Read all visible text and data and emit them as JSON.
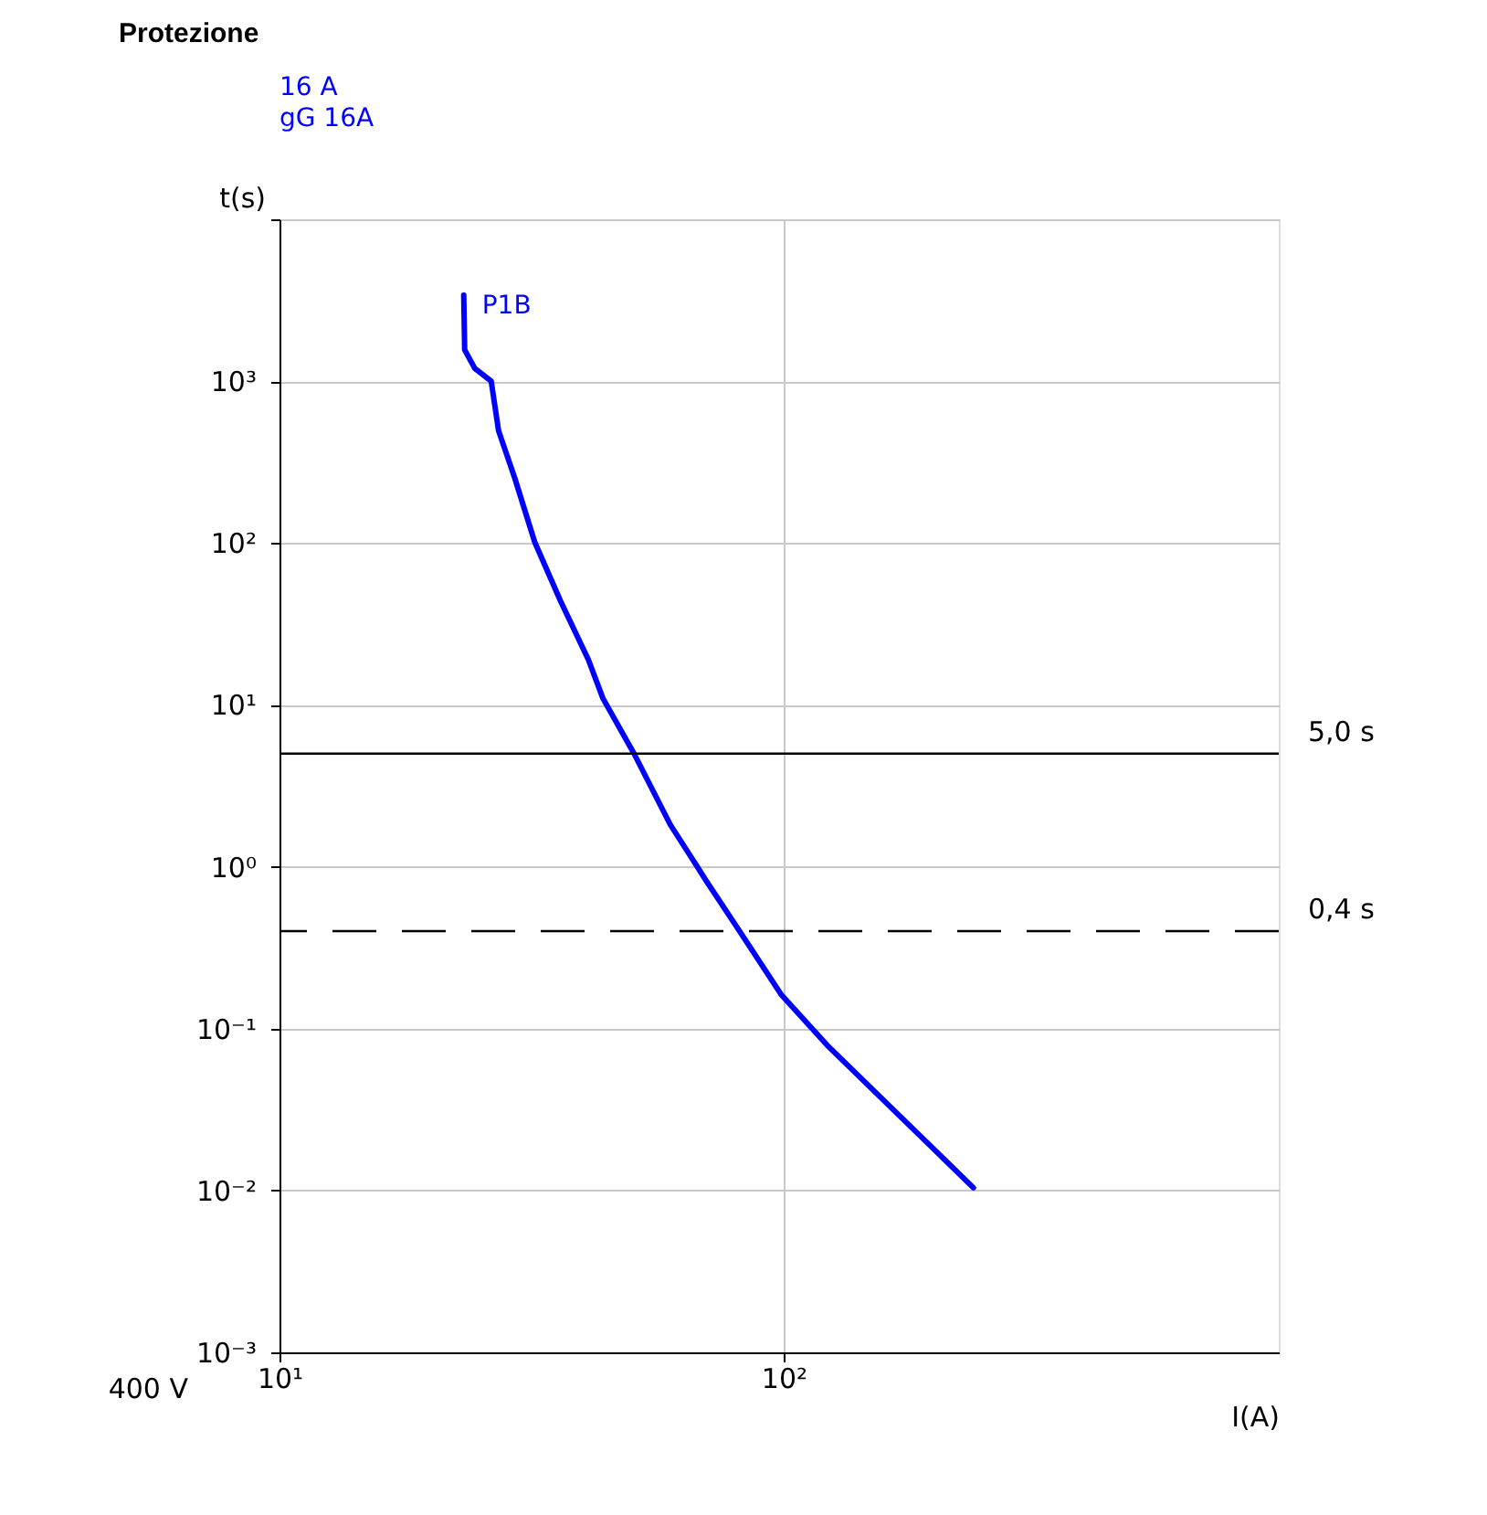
{
  "chart_data": {
    "type": "line",
    "title": "Protezione",
    "subtitle": [
      "16 A",
      "gG 16A"
    ],
    "xlabel": "I(A)",
    "ylabel": "t(s)",
    "log": "xy",
    "grid": true,
    "legend": false,
    "line_style": "solid",
    "marker": "none",
    "xlim": [
      10,
      960
    ],
    "xticks": [
      {
        "value": 10,
        "label": "10¹"
      },
      {
        "value": 100,
        "label": "10²"
      }
    ],
    "ylim": [
      0.001,
      10000
    ],
    "yticks": [
      {
        "value": 0.001,
        "label": "10⁻³"
      },
      {
        "value": 0.01,
        "label": "10⁻²"
      },
      {
        "value": 0.1,
        "label": "10⁻¹"
      },
      {
        "value": 1,
        "label": "10⁰"
      },
      {
        "value": 10,
        "label": "10¹"
      },
      {
        "value": 100,
        "label": "10²"
      },
      {
        "value": 1000,
        "label": "10³"
      },
      {
        "value": 10000,
        "label": null
      }
    ],
    "series": [
      {
        "name": "P1B",
        "color": "#0000ff",
        "x": [
          23.2,
          23.3,
          24.4,
          26.3,
          27.2,
          29.3,
          32.1,
          36.1,
          41.0,
          43.8,
          50.5,
          59.6,
          70.4,
          81.8,
          99.1,
          122,
          238
        ],
        "values": [
          3400,
          1560,
          1200,
          1000,
          494,
          251,
          101,
          43.8,
          19.0,
          11.0,
          5.0,
          1.82,
          0.81,
          0.4,
          0.161,
          0.079,
          0.0104
        ]
      }
    ],
    "ref_lines": [
      {
        "axis": "y",
        "value": 5,
        "label": "5,0 s",
        "color": "#000000",
        "line_style": "solid"
      },
      {
        "axis": "y",
        "value": 0.4,
        "label": "0,4 s",
        "color": "#000000",
        "line_style": "dashed"
      }
    ],
    "annotations": [
      "400 V"
    ]
  }
}
